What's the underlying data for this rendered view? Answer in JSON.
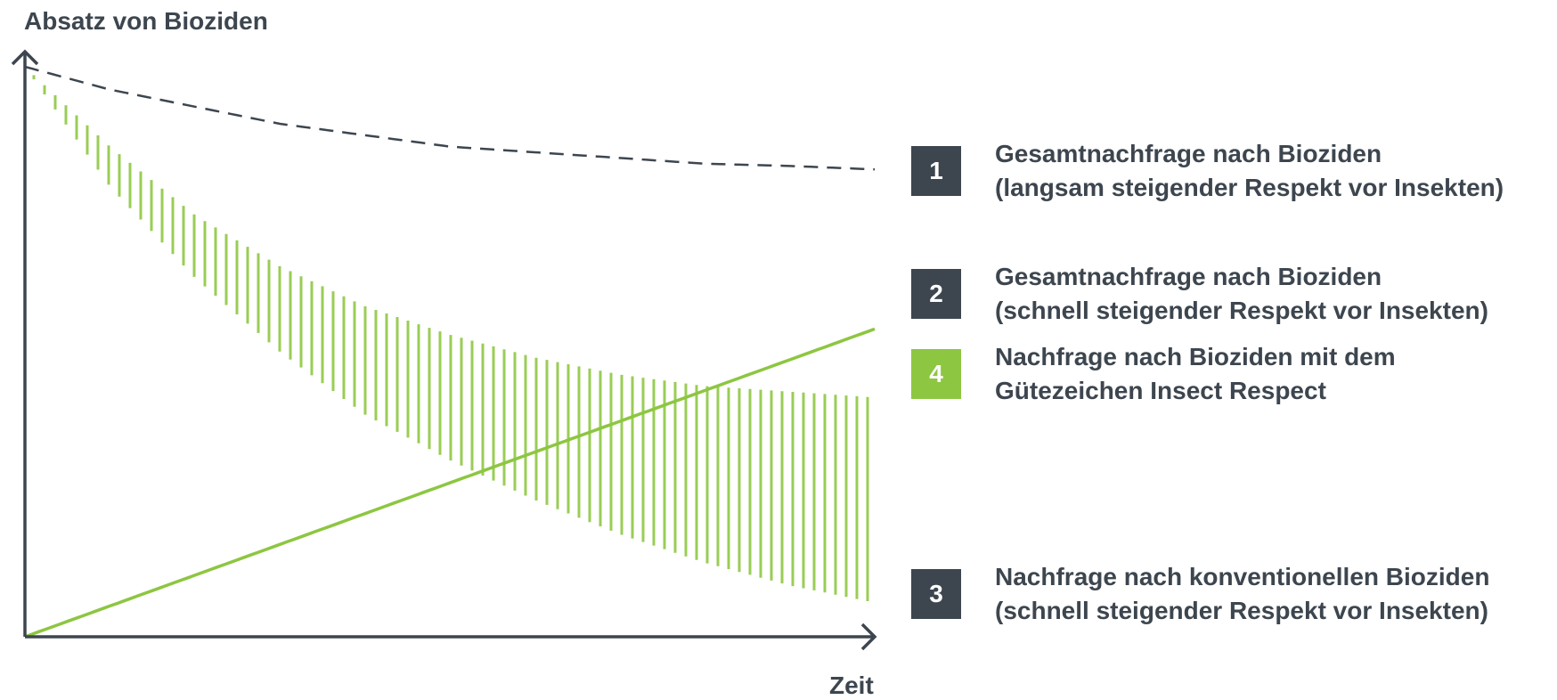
{
  "chart_data": {
    "type": "line",
    "title": "",
    "ylabel": "Absatz von Bioziden",
    "xlabel": "Zeit",
    "x": [
      0,
      0.1,
      0.2,
      0.3,
      0.4,
      0.5,
      0.6,
      0.7,
      0.8,
      0.9,
      1.0
    ],
    "xlim": [
      0,
      1
    ],
    "ylim": [
      0,
      1
    ],
    "grid": false,
    "legend_position": "right",
    "series": [
      {
        "id": "1",
        "name": "Gesamtnachfrage nach Bioziden (langsam steigender Respekt vor Insekten)",
        "style": "dashed",
        "values": [
          1.0,
          0.96,
          0.93,
          0.9,
          0.88,
          0.86,
          0.85,
          0.84,
          0.83,
          0.826,
          0.82
        ]
      },
      {
        "id": "2",
        "name": "Gesamtnachfrage nach Bioziden (schnell steigender Respekt vor Insekten)",
        "style": "upper edge of hatched band",
        "values": [
          1.0,
          0.86,
          0.74,
          0.65,
          0.58,
          0.53,
          0.49,
          0.46,
          0.44,
          0.43,
          0.42
        ]
      },
      {
        "id": "3",
        "name": "Nachfrage nach konventionellen Bioziden (schnell steigender Respekt vor Insekten)",
        "style": "lower edge of hatched band",
        "values": [
          1.0,
          0.79,
          0.63,
          0.5,
          0.39,
          0.31,
          0.24,
          0.18,
          0.13,
          0.09,
          0.06
        ]
      },
      {
        "id": "4",
        "name": "Nachfrage nach Bioziden mit dem Gütezeichen Insect Respect",
        "style": "solid",
        "values": [
          0,
          0.054,
          0.108,
          0.162,
          0.216,
          0.27,
          0.324,
          0.378,
          0.432,
          0.486,
          0.54
        ]
      }
    ]
  },
  "legend": [
    {
      "id": "1",
      "badge": "1",
      "lines": [
        "Gesamtnachfrage nach Bioziden",
        "(langsam steigender Respekt vor Insekten)"
      ]
    },
    {
      "id": "2",
      "badge": "2",
      "lines": [
        "Gesamtnachfrage nach Bioziden",
        "(schnell steigender Respekt vor Insekten)"
      ]
    },
    {
      "id": "4",
      "badge": "4",
      "lines": [
        "Nachfrage nach Bioziden mit dem",
        "Gütezeichen Insect Respect"
      ]
    },
    {
      "id": "3",
      "badge": "3",
      "lines": [
        "Nachfrage nach konventionellen Bioziden",
        "(schnell steigender Respekt vor Insekten)"
      ]
    }
  ],
  "colors": {
    "dark": "#3d464f",
    "green": "#8dc641",
    "hatch": "#9acd55"
  }
}
